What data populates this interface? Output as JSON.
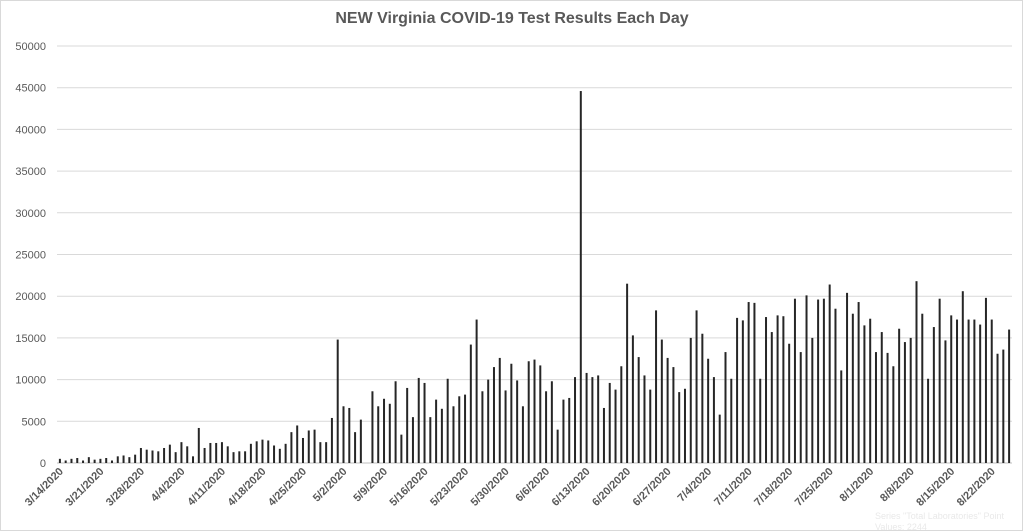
{
  "chart_data": {
    "type": "bar",
    "title": "NEW Virginia COVID-19 Test Results Each Day",
    "xlabel": "",
    "ylabel": "",
    "ylim": [
      0,
      50000
    ],
    "y_ticks": [
      0,
      5000,
      10000,
      15000,
      20000,
      25000,
      30000,
      35000,
      40000,
      45000,
      50000
    ],
    "x_tick_labels": [
      "3/14/2020",
      "3/21/2020",
      "3/28/2020",
      "4/4/2020",
      "4/11/2020",
      "4/18/2020",
      "4/25/2020",
      "5/2/2020",
      "5/9/2020",
      "5/16/2020",
      "5/23/2020",
      "5/30/2020",
      "6/6/2020",
      "6/13/2020",
      "6/20/2020",
      "6/27/2020",
      "7/4/2020",
      "7/11/2020",
      "7/18/2020",
      "7/25/2020",
      "8/1/2020",
      "8/8/2020",
      "8/15/2020",
      "8/22/2020"
    ],
    "grid": true,
    "bar_color": "#262626",
    "grid_color": "#d9d9d9",
    "series": [
      {
        "values": [
          500,
          300,
          500,
          600,
          300,
          700,
          400,
          500,
          600,
          300,
          800,
          900,
          700,
          1000,
          1800,
          1600,
          1500,
          1400,
          1800,
          2200,
          1300,
          2500,
          2000,
          800,
          4200,
          1800,
          2400,
          2400,
          2500,
          2000,
          1300,
          1400,
          1400,
          2300,
          2600,
          2800,
          2700,
          2100,
          1700,
          2300,
          3700,
          4500,
          3000,
          3900,
          4000,
          2500,
          2500,
          5400,
          14800,
          6800,
          6600,
          3700,
          5200,
          0,
          8600,
          6800,
          7700,
          7100,
          9800,
          3400,
          9000,
          5500,
          10200,
          9600,
          5500,
          7600,
          6500,
          10100,
          6800,
          8000,
          8200,
          14200,
          17200,
          8600,
          10000,
          11500,
          12600,
          8700,
          11900,
          9900,
          6800,
          12200,
          12400,
          11700,
          8600,
          9800,
          4000,
          7600,
          7800,
          10300,
          44600,
          10800,
          10300,
          10500,
          6600,
          9600,
          8800,
          11600,
          21500,
          15300,
          12700,
          10500,
          8800,
          18300,
          14800,
          12600,
          11500,
          8500,
          8900,
          15000,
          18300,
          15500,
          12500,
          10300,
          5800,
          13300,
          10100,
          17400,
          17100,
          19300,
          19200,
          10100,
          17500,
          15700,
          17700,
          17600,
          14300,
          19700,
          13300,
          20100,
          15000,
          19600,
          19700,
          21400,
          18500,
          11100,
          20400,
          17900,
          19300,
          16500,
          17300,
          13300,
          15700,
          13200,
          11600,
          16100,
          14500,
          15000,
          21800,
          17900,
          10100,
          16300,
          19700,
          14700,
          17700,
          17200,
          20600,
          17200,
          17200,
          16600,
          19800,
          17200,
          13100,
          13600,
          16000
        ]
      }
    ]
  },
  "watermark": {
    "line1": "Series \"Total Laboratories\" Point",
    "line2": "Values: 2244"
  }
}
